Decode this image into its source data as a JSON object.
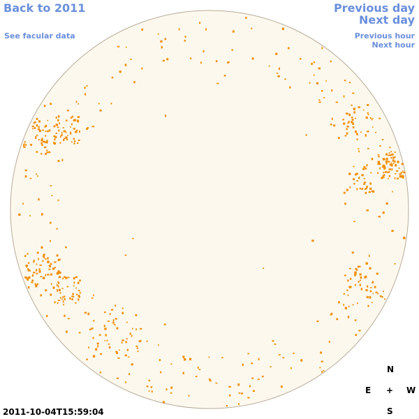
{
  "nav": {
    "back_year": "Back to 2011",
    "facular_data": "See facular data",
    "previous_day": "Previous day",
    "next_day": "Next day",
    "previous_hour": "Previous hour",
    "next_hour": "Next hour"
  },
  "timestamp": "2011-10-04T15:59:04",
  "compass": {
    "north": "N",
    "east": "E",
    "center": "+",
    "west": "W",
    "south": "S"
  }
}
